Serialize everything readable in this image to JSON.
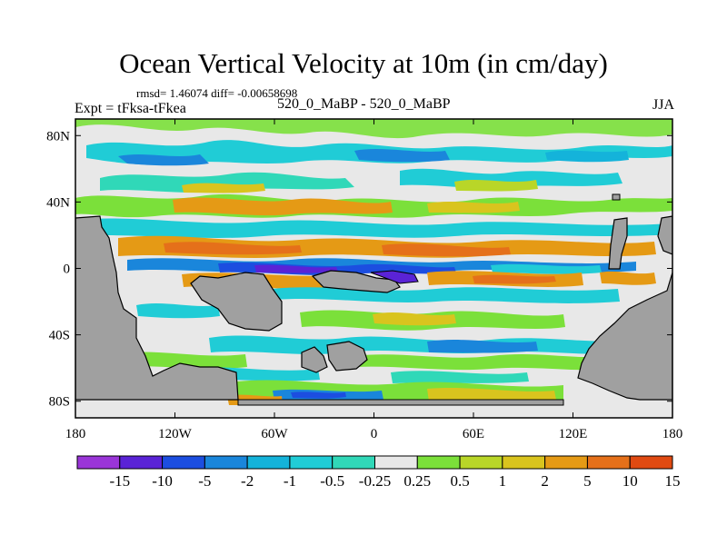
{
  "chart_data": {
    "type": "heatmap",
    "title": "Ocean Vertical Velocity at 10m (in cm/day)",
    "stats": "rmsd= 1.46074 diff= -0.00658698",
    "left_label": "Expt = tFksa-tFkea",
    "center_label": "520_0_MaBP - 520_0_MaBP",
    "right_label": "JJA",
    "x_range": [
      -180,
      180
    ],
    "y_range": [
      -90,
      90
    ],
    "x_ticks": [
      {
        "value": -180,
        "label": "180"
      },
      {
        "value": -120,
        "label": "120W"
      },
      {
        "value": -60,
        "label": "60W"
      },
      {
        "value": 0,
        "label": "0"
      },
      {
        "value": 60,
        "label": "60E"
      },
      {
        "value": 120,
        "label": "120E"
      },
      {
        "value": 180,
        "label": "180"
      }
    ],
    "y_ticks": [
      {
        "value": 80,
        "label": "80N"
      },
      {
        "value": 40,
        "label": "40N"
      },
      {
        "value": 0,
        "label": "0"
      },
      {
        "value": -40,
        "label": "40S"
      },
      {
        "value": -80,
        "label": "80S"
      }
    ],
    "colorbar": {
      "levels": [
        "-15",
        "-10",
        "-5",
        "-2",
        "-1",
        "-0.5",
        "-0.25",
        "0.25",
        "0.5",
        "1",
        "2",
        "5",
        "10",
        "15"
      ],
      "colors": [
        "#9a35d8",
        "#5a23d6",
        "#1c4ee0",
        "#1a86db",
        "#14b3da",
        "#20ccd6",
        "#30d8b8",
        "#e8e8e8",
        "#7be03a",
        "#b9d628",
        "#d9c41e",
        "#e59a15",
        "#e5701a",
        "#e04a12"
      ]
    },
    "zero_band": [
      -0.25,
      0.25
    ]
  }
}
